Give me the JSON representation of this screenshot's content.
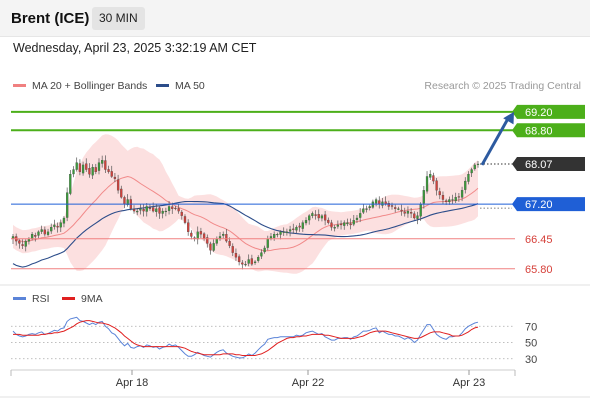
{
  "header": {
    "title": "Brent (ICE)",
    "timeframe": "30 MIN",
    "datetime": "Wednesday, April 23, 2025 3:32:19 AM CET"
  },
  "legend": {
    "ma20_label": "MA 20 + Bollinger Bands",
    "ma50_label": "MA 50",
    "research": "Research © 2025 Trading Central"
  },
  "rsi_legend": {
    "rsi_label": "RSI",
    "ma9_label": "9MA"
  },
  "colors": {
    "bull": "#3a9a3a",
    "bear": "#d0413c",
    "bollinger_fill": "#fbdada",
    "ma20": "#f08080",
    "ma50": "#2c4d8a",
    "resistance": "#4caf1a",
    "pivot": "#1f5fd6",
    "support": "#f08080",
    "current_price_tag": "#333333",
    "rsi": "#5b84d8",
    "rsi_ma": "#e02020",
    "arrow": "#2d5aa0"
  },
  "chart_data": [
    {
      "type": "candlestick",
      "title": "Brent (ICE)",
      "timeframe": "30 MIN",
      "x_tick_labels": [
        "Apr 18",
        "Apr 22",
        "Apr 23"
      ],
      "price_range": [
        65.6,
        69.5
      ],
      "levels": [
        {
          "value": 69.2,
          "label": "69.20",
          "role": "resistance"
        },
        {
          "value": 68.8,
          "label": "68.80",
          "role": "resistance"
        },
        {
          "value": 67.2,
          "label": "67.20",
          "role": "pivot"
        },
        {
          "value": 66.45,
          "label": "66.45",
          "role": "support"
        },
        {
          "value": 65.8,
          "label": "65.80",
          "role": "support"
        }
      ],
      "current_price": {
        "value": 68.07,
        "label": "68.07"
      },
      "projection": {
        "from": 68.05,
        "to": 69.2
      },
      "close_series": [
        66.5,
        66.4,
        66.35,
        66.3,
        66.4,
        66.45,
        66.55,
        66.5,
        66.6,
        66.65,
        66.55,
        66.6,
        66.7,
        66.75,
        66.7,
        66.8,
        66.9,
        67.45,
        67.85,
        67.95,
        68.1,
        67.9,
        68.05,
        67.95,
        67.85,
        68.0,
        67.9,
        68.1,
        68.15,
        67.95,
        67.9,
        67.8,
        67.75,
        67.5,
        67.35,
        67.2,
        67.3,
        67.1,
        67.05,
        67.05,
        67.1,
        67.05,
        67.15,
        67.1,
        67.05,
        67.1,
        67.0,
        67.05,
        67.05,
        67.15,
        67.1,
        67.1,
        67.05,
        66.95,
        66.8,
        66.6,
        66.5,
        66.45,
        66.6,
        66.55,
        66.45,
        66.35,
        66.2,
        66.35,
        66.45,
        66.5,
        66.55,
        66.4,
        66.3,
        66.15,
        66.05,
        65.95,
        65.9,
        65.9,
        66.0,
        65.9,
        65.95,
        66.05,
        66.15,
        66.25,
        66.45,
        66.5,
        66.55,
        66.55,
        66.6,
        66.6,
        66.6,
        66.65,
        66.65,
        66.7,
        66.7,
        66.8,
        66.85,
        66.95,
        67.0,
        66.95,
        66.9,
        66.95,
        66.85,
        66.8,
        66.7,
        66.7,
        66.75,
        66.75,
        66.8,
        66.8,
        66.75,
        66.85,
        66.9,
        67.0,
        67.1,
        67.1,
        67.15,
        67.25,
        67.3,
        67.2,
        67.25,
        67.2,
        67.15,
        67.15,
        67.1,
        67.1,
        67.05,
        67.0,
        67.05,
        67.0,
        66.9,
        66.95,
        67.2,
        67.5,
        67.8,
        67.85,
        67.7,
        67.5,
        67.4,
        67.3,
        67.25,
        67.3,
        67.3,
        67.35,
        67.35,
        67.5,
        67.7,
        67.85,
        67.95,
        68.05,
        68.07
      ]
    },
    {
      "type": "line",
      "title": "RSI",
      "series": [
        {
          "name": "RSI",
          "values": [
            64,
            60,
            58,
            57,
            58,
            60,
            61,
            60,
            62,
            63,
            60,
            61,
            63,
            65,
            64,
            67,
            68,
            76,
            79,
            80,
            81,
            77,
            76,
            74,
            72,
            74,
            72,
            75,
            76,
            70,
            67,
            62,
            60,
            55,
            50,
            46,
            49,
            44,
            43,
            45,
            46,
            44,
            47,
            46,
            44,
            45,
            42,
            44,
            45,
            48,
            46,
            47,
            44,
            40,
            36,
            33,
            33,
            35,
            38,
            36,
            34,
            33,
            32,
            35,
            38,
            40,
            41,
            37,
            35,
            33,
            32,
            31,
            31,
            33,
            36,
            34,
            37,
            41,
            45,
            48,
            54,
            55,
            56,
            56,
            57,
            57,
            57,
            57,
            57,
            59,
            58,
            59,
            62,
            63,
            64,
            62,
            60,
            61,
            57,
            55,
            53,
            53,
            55,
            55,
            56,
            56,
            54,
            57,
            58,
            61,
            64,
            64,
            65,
            67,
            68,
            62,
            64,
            62,
            60,
            60,
            58,
            58,
            56,
            54,
            56,
            54,
            50,
            53,
            60,
            66,
            72,
            72,
            66,
            60,
            57,
            55,
            54,
            57,
            57,
            58,
            58,
            62,
            67,
            70,
            72,
            74,
            75
          ]
        },
        {
          "name": "9MA",
          "values": [
            60,
            60,
            60,
            59,
            59,
            59,
            59,
            59,
            59,
            60,
            60,
            61,
            61,
            62,
            62,
            63,
            64,
            66,
            68,
            70,
            73,
            75,
            76,
            77,
            77,
            76,
            75,
            74,
            74,
            73,
            72,
            70,
            68,
            65,
            62,
            58,
            55,
            52,
            49,
            47,
            46,
            45,
            45,
            45,
            45,
            45,
            45,
            45,
            45,
            45,
            45,
            45,
            45,
            44,
            43,
            41,
            39,
            38,
            37,
            36,
            35,
            35,
            35,
            35,
            35,
            35,
            36,
            36,
            36,
            36,
            35,
            35,
            34,
            34,
            34,
            34,
            34,
            35,
            36,
            38,
            40,
            43,
            46,
            49,
            51,
            53,
            55,
            56,
            56,
            57,
            57,
            58,
            58,
            59,
            60,
            60,
            60,
            60,
            59,
            59,
            58,
            57,
            56,
            55,
            55,
            55,
            55,
            55,
            56,
            57,
            58,
            60,
            62,
            63,
            64,
            64,
            64,
            64,
            63,
            62,
            61,
            60,
            59,
            58,
            57,
            56,
            55,
            55,
            56,
            58,
            60,
            62,
            63,
            63,
            63,
            62,
            61,
            60,
            58,
            58,
            58,
            59,
            61,
            63,
            66,
            68,
            69
          ]
        }
      ],
      "y_ticks": [
        70,
        50,
        30
      ],
      "y_tick_labels": [
        "70",
        "50",
        "30"
      ],
      "ylim": [
        10,
        90
      ]
    }
  ]
}
